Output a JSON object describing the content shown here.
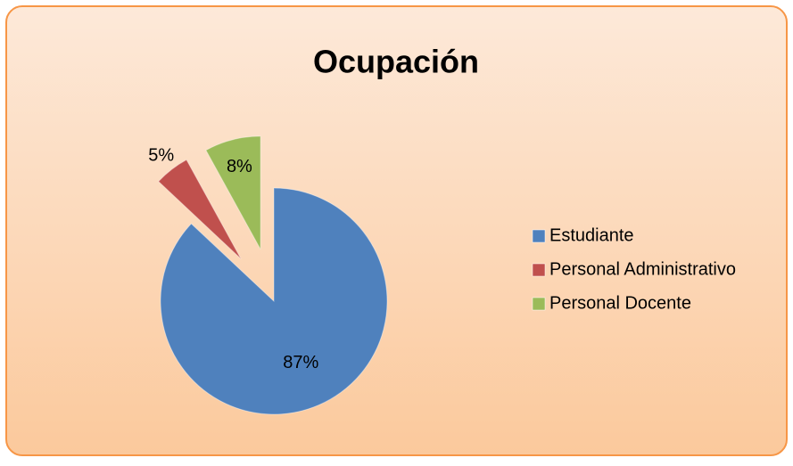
{
  "chart_data": {
    "type": "pie",
    "title": "Ocupación",
    "categories": [
      "Estudiante",
      "Personal Administrativo",
      "Personal Docente"
    ],
    "values": [
      87,
      5,
      8
    ],
    "value_labels": [
      "87%",
      "5%",
      "8%"
    ],
    "colors": [
      "#4f81bd",
      "#c0504d",
      "#9bbb59"
    ],
    "legend": "right"
  }
}
